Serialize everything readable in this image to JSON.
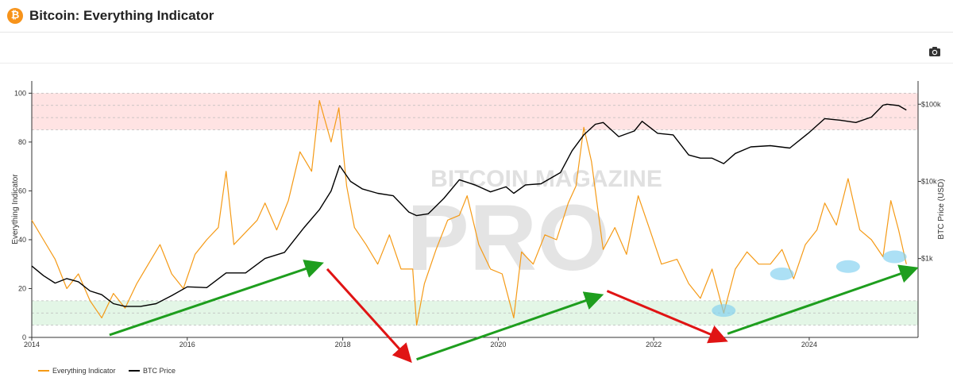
{
  "header": {
    "title": "Bitcoin: Everything Indicator",
    "logo_glyph": "₿"
  },
  "toolbar": {
    "camera_icon": "camera-icon"
  },
  "watermark": {
    "line1": "BITCOIN MAGAZINE",
    "line2": "PRO"
  },
  "colors": {
    "indicator": "#f59a16",
    "price": "#000000",
    "overbought_band": "#ffe3e3",
    "oversold_band": "#e3f6e6",
    "arrow_up": "#1e9e1e",
    "arrow_down": "#e01414",
    "highlight": "#7fd0f0"
  },
  "chart_data": {
    "type": "line",
    "title": "",
    "xlabel": "",
    "ylabel": "Everything Indicator",
    "y2label": "BTC Price (USD)",
    "xlim": [
      2014.0,
      2025.4
    ],
    "ylim": [
      0,
      105
    ],
    "y2scale": "log",
    "y2lim": [
      95,
      200000
    ],
    "x_ticks": [
      2014,
      2016,
      2018,
      2020,
      2022,
      2024
    ],
    "x_tick_labels": [
      "2014",
      "2016",
      "2018",
      "2020",
      "2022",
      "2024"
    ],
    "y_ticks": [
      0,
      20,
      40,
      60,
      80,
      100
    ],
    "y_tick_labels": [
      "0",
      "20",
      "40",
      "60",
      "80",
      "100"
    ],
    "y2_ticks": [
      1000,
      10000,
      100000
    ],
    "y2_tick_labels": [
      "$1k",
      "$10k",
      "$100k"
    ],
    "bands": [
      {
        "from": 85,
        "to": 100,
        "color": "#ffe3e3"
      },
      {
        "from": 5,
        "to": 15,
        "color": "#e3f6e6"
      }
    ],
    "band_lines": [
      5,
      10,
      15,
      85,
      90,
      95,
      100
    ],
    "series": [
      {
        "name": "Everything Indicator",
        "axis": "left",
        "color": "#f59a16",
        "x": [
          2014.0,
          2014.15,
          2014.3,
          2014.45,
          2014.6,
          2014.75,
          2014.9,
          2015.05,
          2015.2,
          2015.35,
          2015.5,
          2015.65,
          2015.8,
          2015.95,
          2016.1,
          2016.25,
          2016.4,
          2016.5,
          2016.6,
          2016.75,
          2016.9,
          2017.0,
          2017.15,
          2017.3,
          2017.45,
          2017.6,
          2017.7,
          2017.85,
          2017.95,
          2018.05,
          2018.15,
          2018.3,
          2018.45,
          2018.6,
          2018.75,
          2018.9,
          2018.95,
          2019.05,
          2019.2,
          2019.35,
          2019.5,
          2019.6,
          2019.75,
          2019.9,
          2020.05,
          2020.2,
          2020.3,
          2020.45,
          2020.6,
          2020.75,
          2020.9,
          2021.0,
          2021.1,
          2021.2,
          2021.35,
          2021.5,
          2021.65,
          2021.8,
          2021.95,
          2022.1,
          2022.3,
          2022.45,
          2022.6,
          2022.75,
          2022.9,
          2023.05,
          2023.2,
          2023.35,
          2023.5,
          2023.65,
          2023.8,
          2023.95,
          2024.1,
          2024.2,
          2024.35,
          2024.5,
          2024.65,
          2024.8,
          2024.95,
          2025.05,
          2025.15,
          2025.25
        ],
        "y": [
          48,
          40,
          32,
          20,
          26,
          15,
          8,
          18,
          12,
          22,
          30,
          38,
          26,
          20,
          34,
          40,
          45,
          68,
          38,
          43,
          48,
          55,
          44,
          56,
          76,
          68,
          97,
          80,
          94,
          62,
          45,
          38,
          30,
          42,
          28,
          28,
          5,
          22,
          36,
          48,
          50,
          58,
          38,
          28,
          26,
          8,
          35,
          30,
          42,
          40,
          55,
          62,
          86,
          72,
          36,
          45,
          34,
          58,
          44,
          30,
          32,
          22,
          16,
          28,
          10,
          28,
          35,
          30,
          30,
          36,
          24,
          38,
          44,
          55,
          46,
          65,
          44,
          40,
          33,
          56,
          44,
          30
        ]
      },
      {
        "name": "BTC Price",
        "axis": "right",
        "color": "#000000",
        "x": [
          2014.0,
          2014.15,
          2014.3,
          2014.45,
          2014.6,
          2014.75,
          2014.9,
          2015.05,
          2015.2,
          2015.4,
          2015.6,
          2015.8,
          2016.0,
          2016.25,
          2016.5,
          2016.75,
          2017.0,
          2017.25,
          2017.5,
          2017.7,
          2017.85,
          2017.96,
          2018.1,
          2018.25,
          2018.45,
          2018.65,
          2018.85,
          2018.95,
          2019.1,
          2019.3,
          2019.5,
          2019.7,
          2019.9,
          2020.1,
          2020.2,
          2020.35,
          2020.55,
          2020.8,
          2020.95,
          2021.1,
          2021.25,
          2021.35,
          2021.55,
          2021.75,
          2021.85,
          2022.05,
          2022.25,
          2022.45,
          2022.6,
          2022.75,
          2022.9,
          2023.05,
          2023.25,
          2023.5,
          2023.75,
          2024.0,
          2024.2,
          2024.4,
          2024.6,
          2024.8,
          2024.95,
          2025.0,
          2025.15,
          2025.25
        ],
        "y": [
          800,
          600,
          480,
          550,
          500,
          380,
          340,
          260,
          240,
          240,
          260,
          330,
          430,
          420,
          650,
          650,
          1000,
          1200,
          2500,
          4300,
          7500,
          16000,
          10000,
          8000,
          7000,
          6500,
          4000,
          3600,
          3800,
          6000,
          10500,
          9000,
          7300,
          8500,
          7000,
          9000,
          9300,
          13000,
          25000,
          40000,
          55000,
          58000,
          38000,
          45000,
          60000,
          42000,
          40000,
          22000,
          20000,
          20000,
          17000,
          23000,
          28000,
          29000,
          27000,
          43000,
          65000,
          62000,
          58000,
          68000,
          97000,
          100000,
          96000,
          84000
        ]
      }
    ],
    "annotations": [
      {
        "shape": "arrow",
        "color": "#1e9e1e",
        "from": [
          2015.0,
          1
        ],
        "to": [
          2017.7,
          30
        ]
      },
      {
        "shape": "arrow",
        "color": "#e01414",
        "from": [
          2017.8,
          28
        ],
        "to": [
          2018.85,
          -9
        ]
      },
      {
        "shape": "arrow",
        "color": "#1e9e1e",
        "from": [
          2018.95,
          -9
        ],
        "to": [
          2021.3,
          17
        ]
      },
      {
        "shape": "arrow",
        "color": "#e01414",
        "from": [
          2021.4,
          19
        ],
        "to": [
          2022.9,
          -1
        ]
      },
      {
        "shape": "arrow",
        "color": "#1e9e1e",
        "from": [
          2022.95,
          1.5
        ],
        "to": [
          2025.35,
          28
        ]
      },
      {
        "shape": "ellipse",
        "color": "#7fd0f0",
        "at": [
          2022.9,
          11
        ]
      },
      {
        "shape": "ellipse",
        "color": "#7fd0f0",
        "at": [
          2023.65,
          26
        ]
      },
      {
        "shape": "ellipse",
        "color": "#7fd0f0",
        "at": [
          2024.5,
          29
        ]
      },
      {
        "shape": "ellipse",
        "color": "#7fd0f0",
        "at": [
          2025.1,
          33
        ]
      }
    ],
    "legend": {
      "position": "bottom-left",
      "items": [
        "Everything Indicator",
        "BTC Price"
      ]
    },
    "grid": false
  }
}
